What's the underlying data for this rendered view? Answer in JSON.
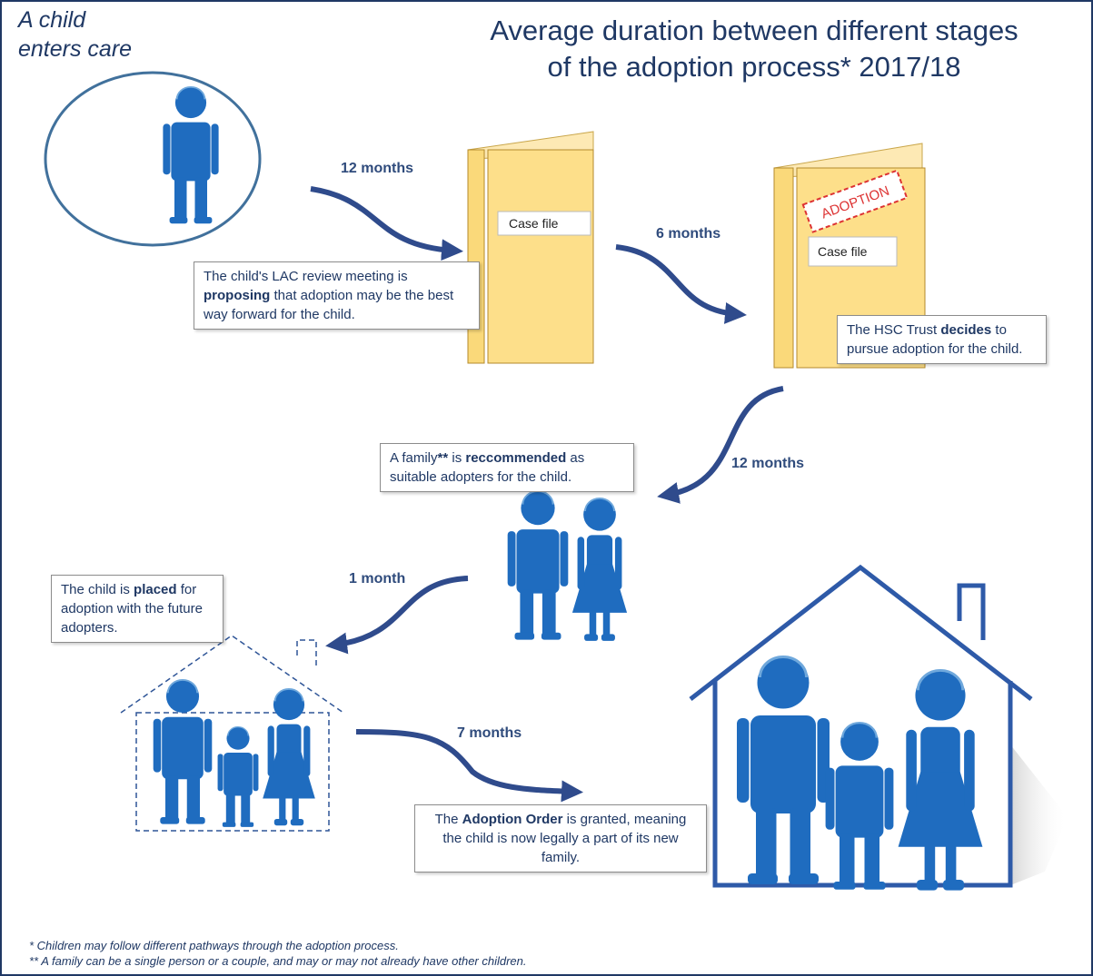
{
  "title": [
    "Average duration between different stages",
    "of the adoption process* 2017/18"
  ],
  "start_label": [
    "A child",
    "enters care"
  ],
  "case_file_labels": [
    "Case file",
    "Case file"
  ],
  "stamp": "ADOPTION",
  "durations": [
    "12 months",
    "6 months",
    "12 months",
    "1 month",
    "7 months"
  ],
  "stages": [
    {
      "text": [
        "The child's LAC review meeting is ",
        "proposing",
        " that adoption may be the best way forward for the child."
      ]
    },
    {
      "text": [
        "The HSC Trust ",
        "decides",
        " to pursue adoption for the child."
      ]
    },
    {
      "text": [
        "A family",
        "**",
        " is ",
        "reccommended",
        " as suitable adopters for the child."
      ]
    },
    {
      "text": [
        "The child is ",
        "placed",
        " for adoption with the future adopters."
      ]
    },
    {
      "text": [
        "The ",
        "Adoption Order",
        " is granted, meaning the child is now legally a part of its new family."
      ]
    }
  ],
  "footnotes": [
    "* Children may follow different pathways through the adoption process.",
    "** A family can be a single person or a couple, and may or may not already have other children."
  ]
}
